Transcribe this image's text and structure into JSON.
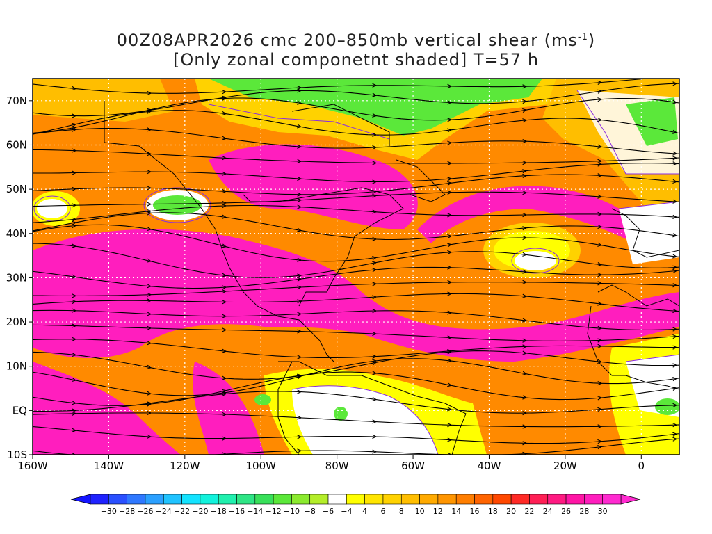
{
  "title": {
    "line1_text": "00Z08APR2026 cmc 200–850mb vertical shear (ms",
    "line1_sup": "-1",
    "line1_end": ")",
    "line2": "[Only zonal componetnt shaded] T=57 h"
  },
  "map": {
    "lon_range": [
      -160,
      10
    ],
    "lat_range": [
      -10,
      75
    ],
    "lon_ticks": [
      {
        "value": -160,
        "label": "160W"
      },
      {
        "value": -140,
        "label": "140W"
      },
      {
        "value": -120,
        "label": "120W"
      },
      {
        "value": -100,
        "label": "100W"
      },
      {
        "value": -80,
        "label": "80W"
      },
      {
        "value": -60,
        "label": "60W"
      },
      {
        "value": -40,
        "label": "40W"
      },
      {
        "value": -20,
        "label": "20W"
      },
      {
        "value": 0,
        "label": "0"
      }
    ],
    "lat_ticks": [
      {
        "value": -10,
        "label": "10S"
      },
      {
        "value": 0,
        "label": "EQ"
      },
      {
        "value": 10,
        "label": "10N"
      },
      {
        "value": 20,
        "label": "20N"
      },
      {
        "value": 30,
        "label": "30N"
      },
      {
        "value": 40,
        "label": "40N"
      },
      {
        "value": 50,
        "label": "50N"
      },
      {
        "value": 60,
        "label": "60N"
      },
      {
        "value": 70,
        "label": "70N"
      }
    ],
    "grid_lines": true,
    "streamlines": true
  },
  "colorbar": {
    "labels": [
      "-30",
      "-28",
      "-26",
      "-24",
      "-22",
      "-20",
      "-18",
      "-16",
      "-14",
      "-12",
      "-10",
      "-8",
      "-6",
      "-4",
      "4",
      "6",
      "8",
      "10",
      "12",
      "14",
      "16",
      "18",
      "20",
      "22",
      "24",
      "26",
      "28",
      "30"
    ],
    "colors": [
      "#1f22ff",
      "#2a50ff",
      "#2f78ff",
      "#2ba0ff",
      "#20c3ff",
      "#14e3ff",
      "#12f2dc",
      "#20f0ae",
      "#2ee585",
      "#38e05a",
      "#5be83a",
      "#8bea2f",
      "#b4ee2a",
      "#ffffff",
      "#ffff00",
      "#ffe500",
      "#ffd200",
      "#ffbe00",
      "#ffaa00",
      "#ff9500",
      "#ff7e00",
      "#ff6400",
      "#ff4800",
      "#ff2a26",
      "#ff1f55",
      "#ff1a82",
      "#ff15a5",
      "#ff1ebe",
      "#ff2ad0"
    ],
    "left_arrow_color": "#1414ff",
    "right_arrow_color": "#ff2ad0"
  }
}
